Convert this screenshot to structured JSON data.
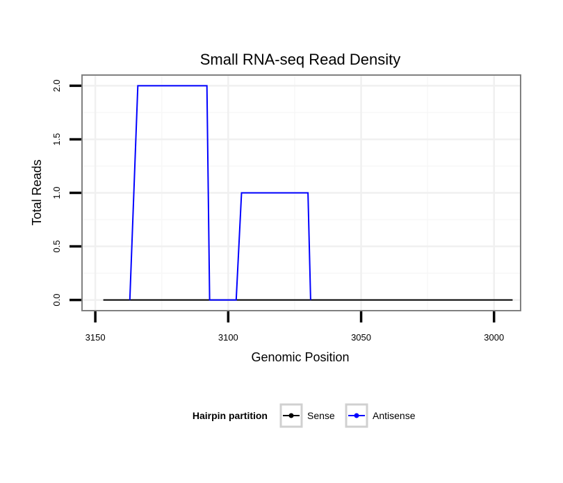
{
  "chart_data": {
    "type": "line",
    "title": "Small RNA-seq Read Density",
    "xlabel": "Genomic Position",
    "ylabel": "Total Reads",
    "x_reversed": true,
    "xlim": [
      2990,
      3155
    ],
    "ylim": [
      -0.1,
      2.1
    ],
    "x_ticks": [
      3150,
      3100,
      3050,
      3000
    ],
    "x_tick_labels": [
      "3150",
      "3100",
      "3050",
      "3000"
    ],
    "y_ticks": [
      0.0,
      0.5,
      1.0,
      1.5,
      2.0
    ],
    "y_tick_labels": [
      "0.0",
      "0.5",
      "1.0",
      "1.5",
      "2.0"
    ],
    "x_minor_gridlines": [
      3125,
      3075,
      3025
    ],
    "y_minor_gridlines": [
      0.25,
      0.75,
      1.25,
      1.75
    ],
    "grid": true,
    "legend": {
      "title": "Hairpin partition",
      "position": "bottom",
      "entries": [
        {
          "label": "Sense",
          "color": "#000000"
        },
        {
          "label": "Antisense",
          "color": "#0000ff"
        }
      ]
    },
    "series": [
      {
        "name": "Sense",
        "color": "#000000",
        "x": [
          3147,
          2993
        ],
        "y": [
          0,
          0
        ]
      },
      {
        "name": "Antisense",
        "color": "#0000ff",
        "x": [
          3137,
          3134,
          3108,
          3107,
          3097,
          3095,
          3070,
          3069
        ],
        "y": [
          0,
          2,
          2,
          0,
          0,
          1,
          1,
          0
        ]
      }
    ]
  }
}
